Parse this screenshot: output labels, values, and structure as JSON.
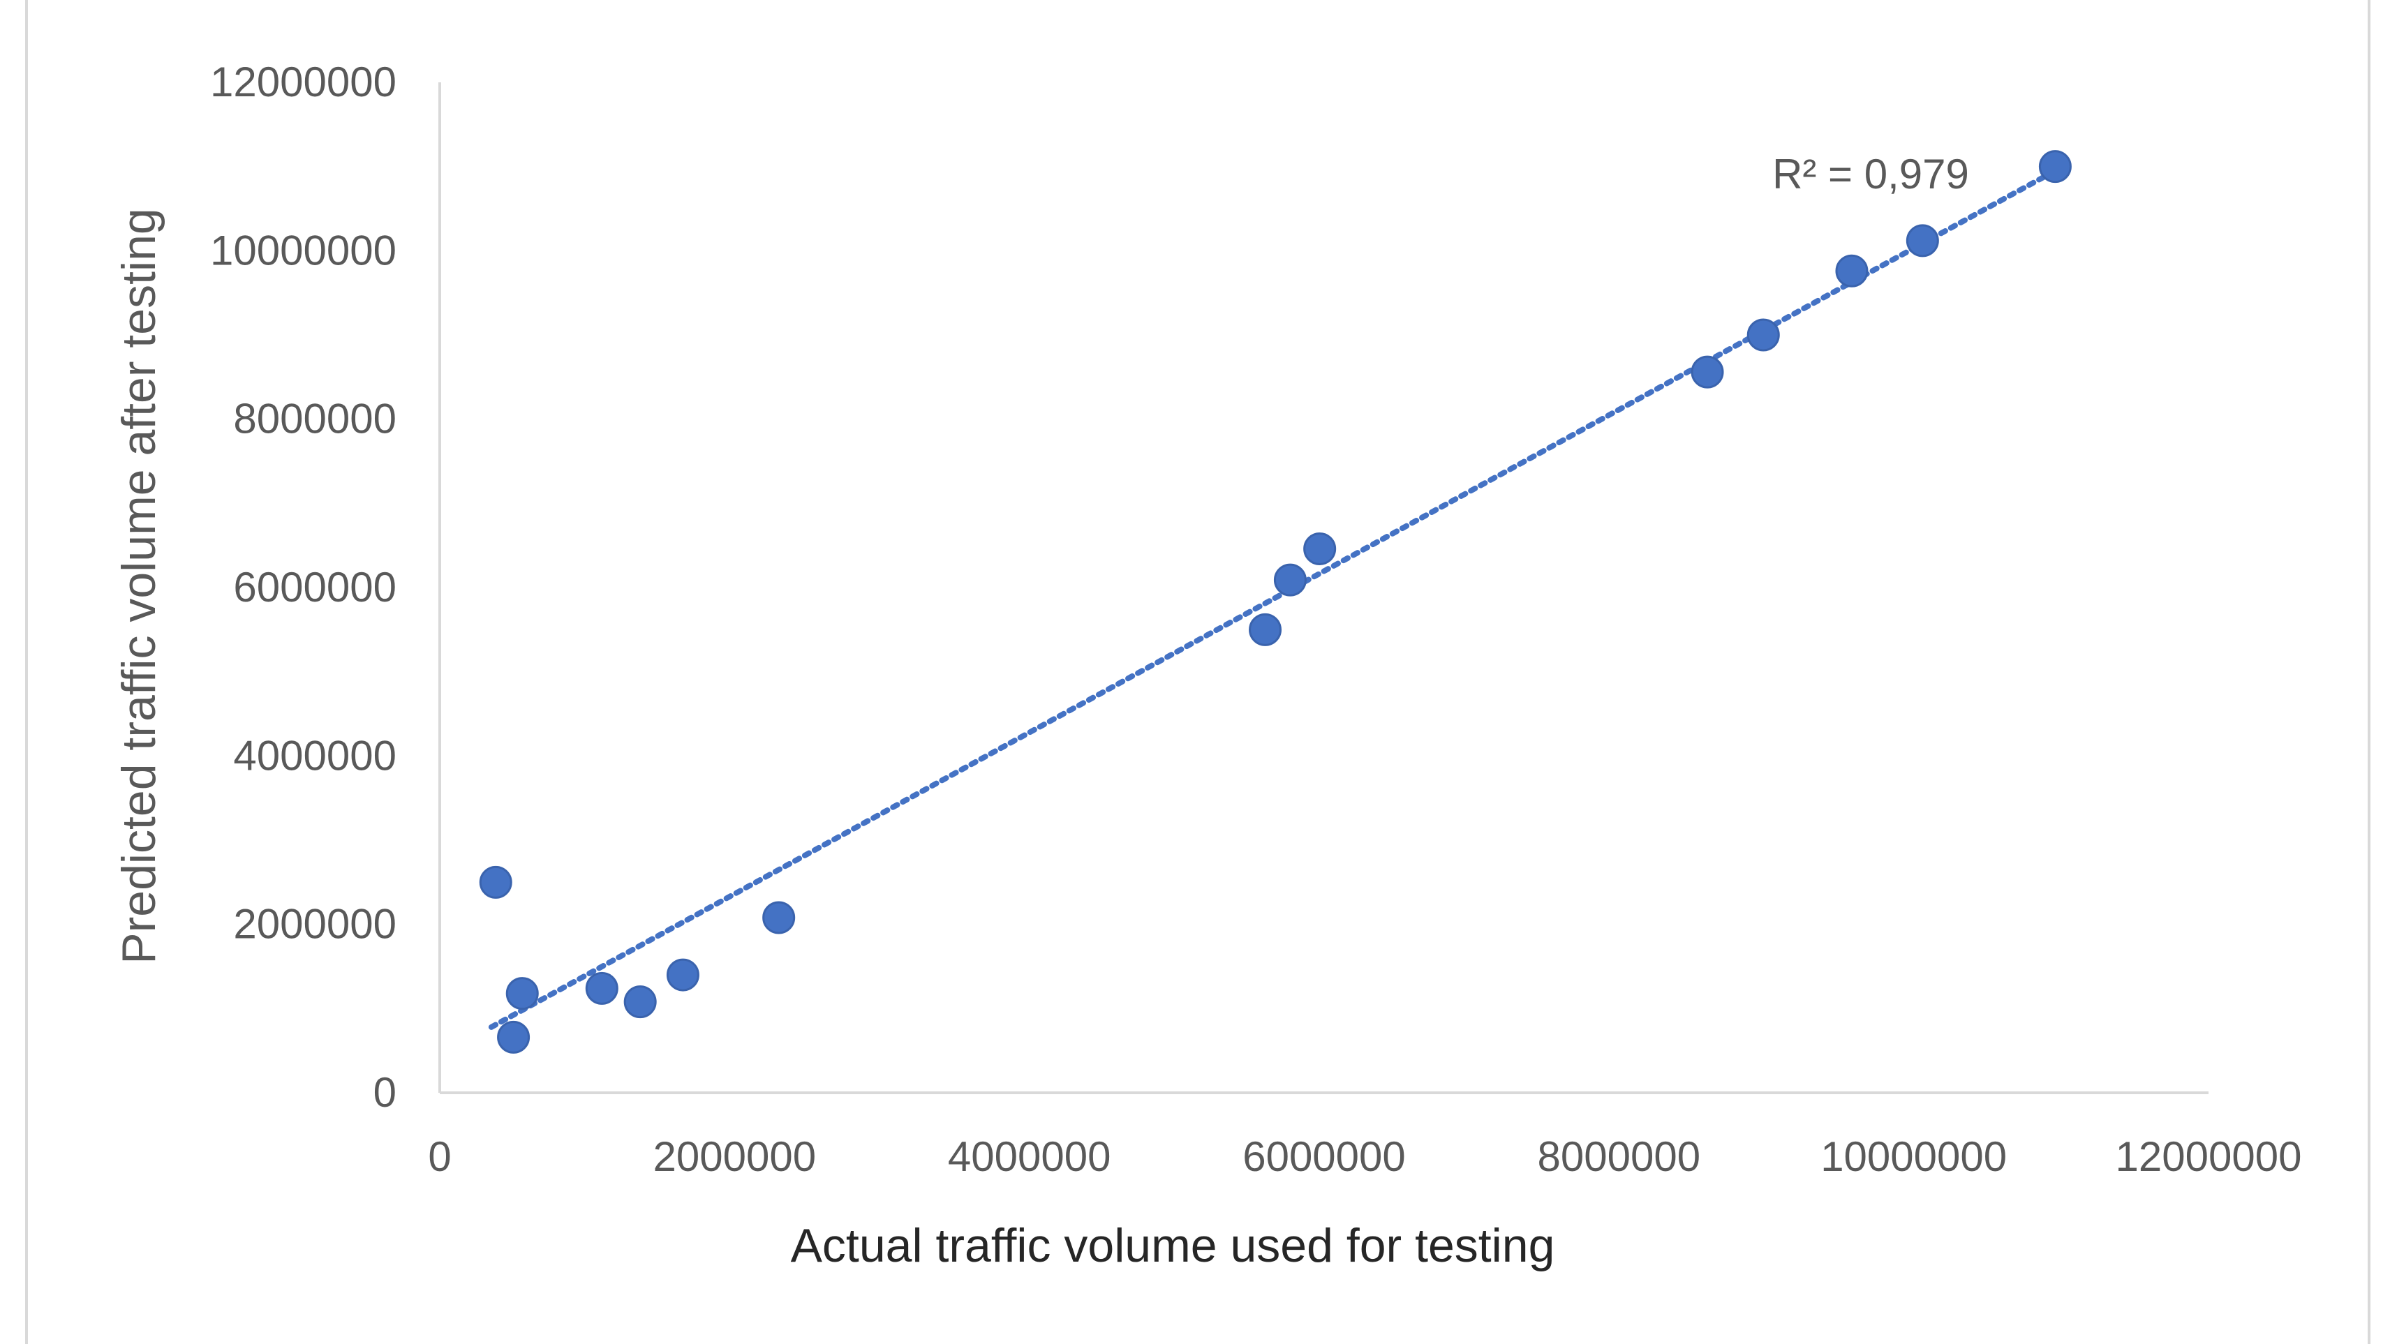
{
  "chart_data": {
    "type": "scatter",
    "xlabel": "Actual traffic volume used for testing",
    "ylabel": "Predicted traffic volume after testing",
    "xlim": [
      0,
      12000000
    ],
    "ylim": [
      0,
      12000000
    ],
    "x_ticks": [
      "0",
      "2000000",
      "4000000",
      "6000000",
      "8000000",
      "10000000",
      "12000000"
    ],
    "y_ticks": [
      "0",
      "2000000",
      "4000000",
      "6000000",
      "8000000",
      "10000000",
      "12000000"
    ],
    "x_tick_values": [
      0,
      2000000,
      4000000,
      6000000,
      8000000,
      10000000,
      12000000
    ],
    "y_tick_values": [
      0,
      2000000,
      4000000,
      6000000,
      8000000,
      10000000,
      12000000
    ],
    "grid": false,
    "marker_color": "#4472C4",
    "trendline_color": "#4472C4",
    "points": [
      {
        "x": 380000,
        "y": 2500000
      },
      {
        "x": 500000,
        "y": 660000
      },
      {
        "x": 560000,
        "y": 1180000
      },
      {
        "x": 1100000,
        "y": 1240000
      },
      {
        "x": 1360000,
        "y": 1080000
      },
      {
        "x": 1650000,
        "y": 1400000
      },
      {
        "x": 2300000,
        "y": 2080000
      },
      {
        "x": 5600000,
        "y": 5500000
      },
      {
        "x": 5770000,
        "y": 6090000
      },
      {
        "x": 5970000,
        "y": 6460000
      },
      {
        "x": 8600000,
        "y": 8560000
      },
      {
        "x": 8980000,
        "y": 9000000
      },
      {
        "x": 9580000,
        "y": 9760000
      },
      {
        "x": 10060000,
        "y": 10120000
      },
      {
        "x": 10960000,
        "y": 11000000
      }
    ],
    "trendline": {
      "type": "linear",
      "x_start": 350000,
      "y_start": 780000,
      "x_end": 10960000,
      "y_end": 10950000,
      "r2_text": "R² = 0,979"
    }
  }
}
